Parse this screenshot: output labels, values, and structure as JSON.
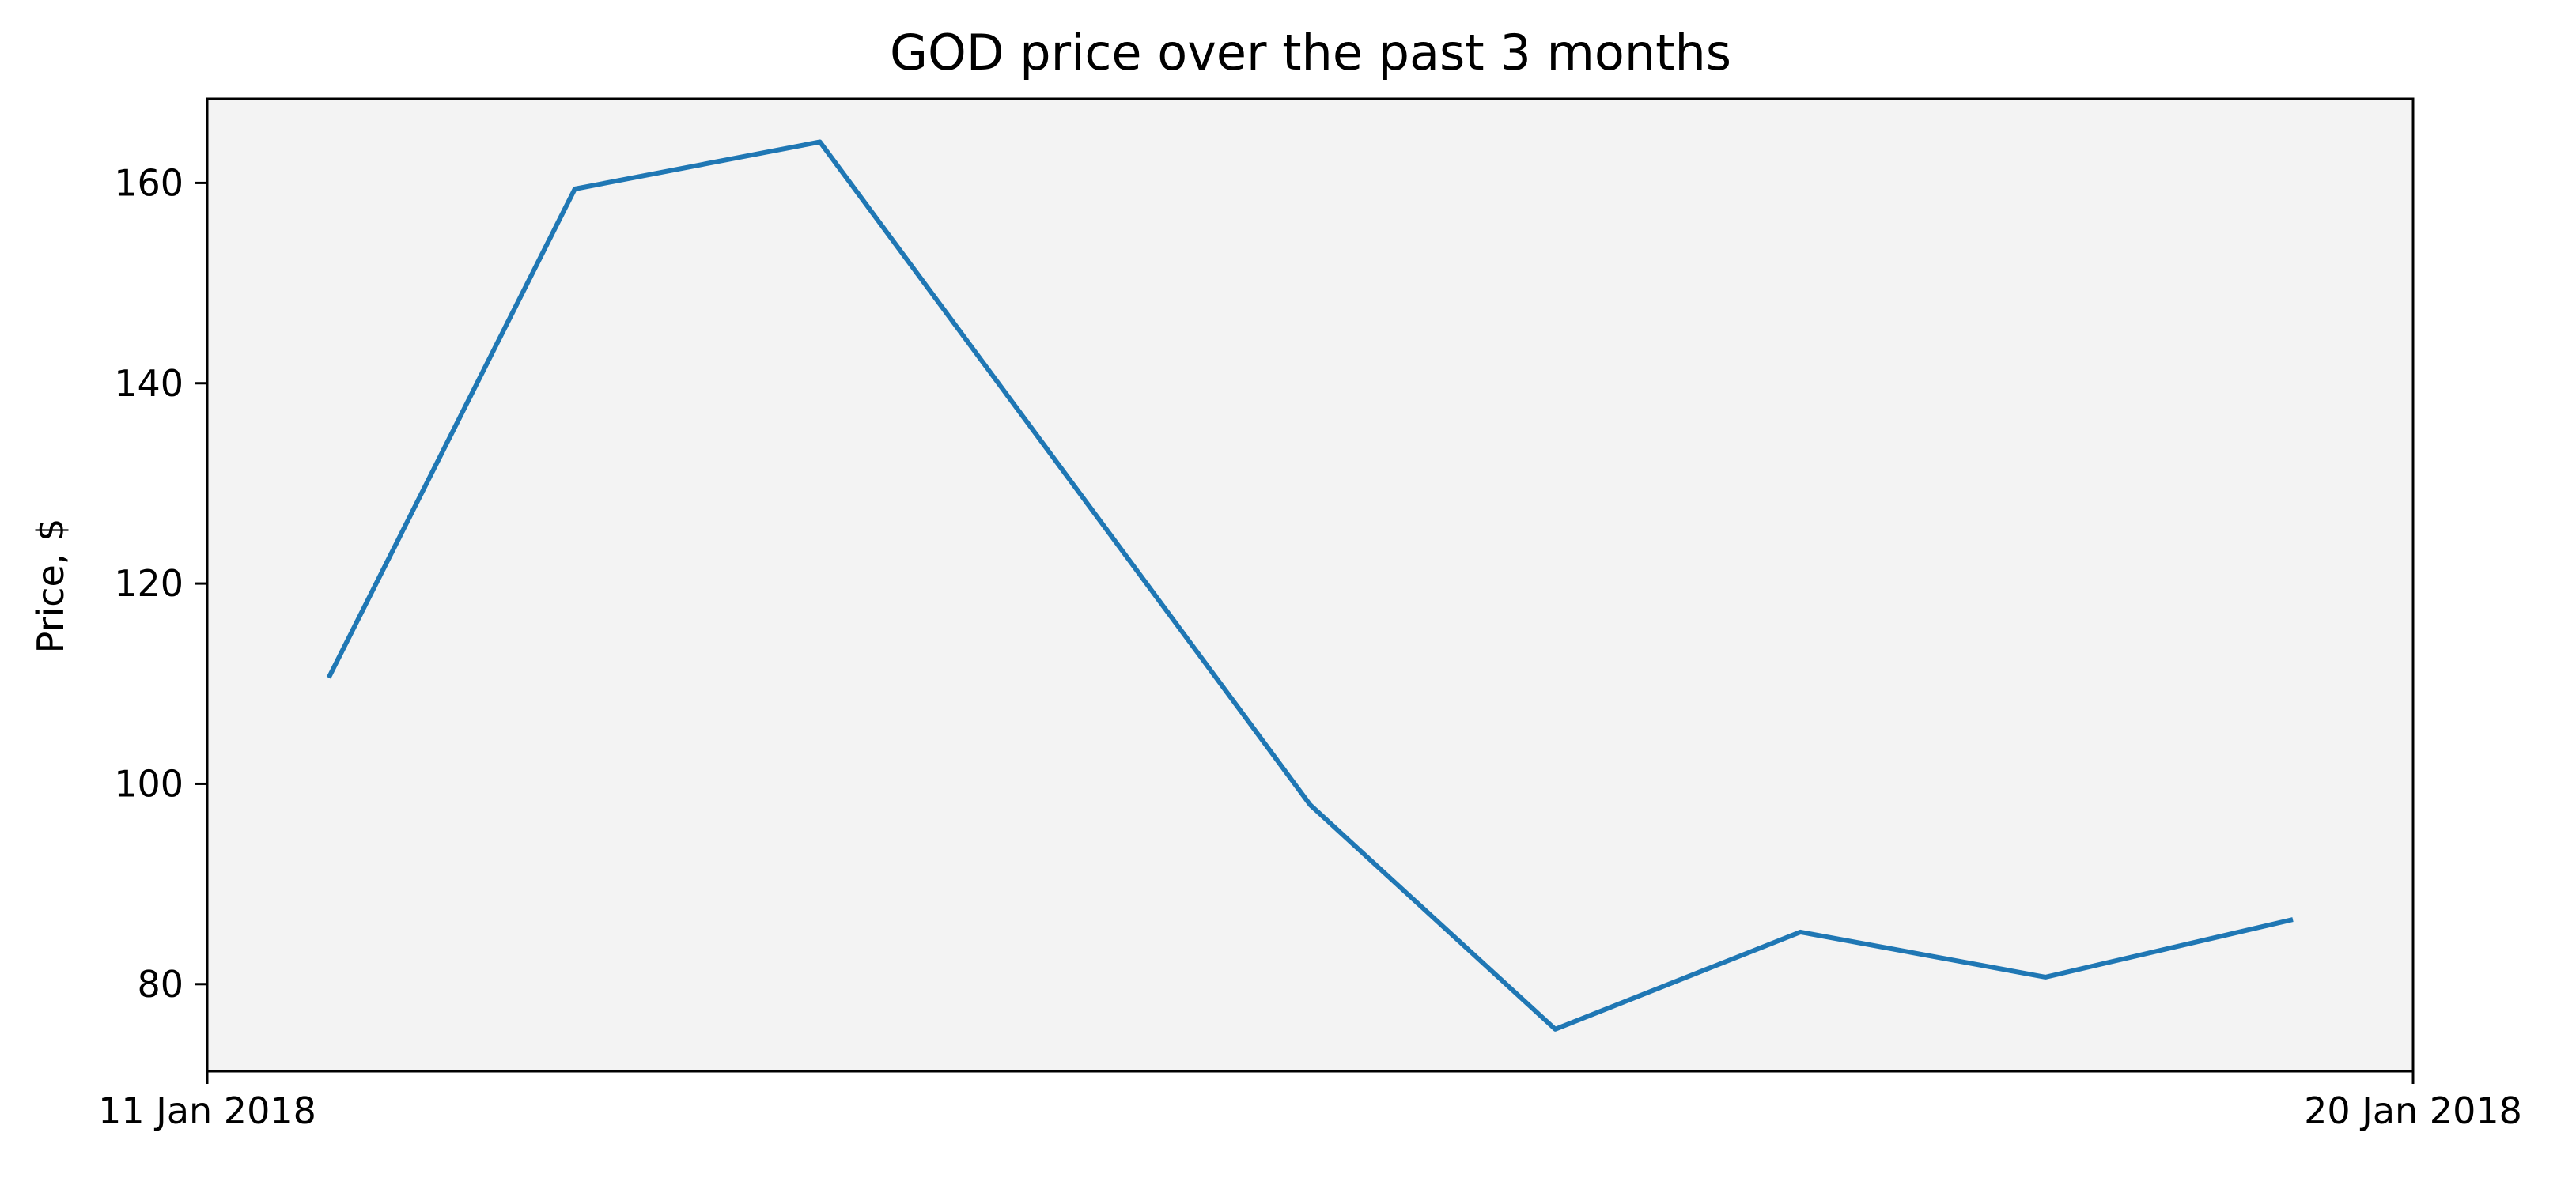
{
  "chart_data": {
    "type": "line",
    "title": "GOD price over the past 3 months",
    "xlabel": "",
    "ylabel": "Price, $",
    "x_tick_labels": [
      "11 Jan 2018",
      "20 Jan 2018"
    ],
    "x": [
      "2018-01-11 12:00",
      "2018-01-12 12:00",
      "2018-01-13 12:00",
      "2018-01-14 12:00",
      "2018-01-15 12:00",
      "2018-01-16 12:00",
      "2018-01-17 12:00",
      "2018-01-18 12:00",
      "2018-01-19 12:00"
    ],
    "xlim": [
      "2018-01-11",
      "2018-01-20"
    ],
    "y_ticks": [
      80,
      100,
      120,
      140,
      160
    ],
    "ylim": [
      71.3,
      168.4
    ],
    "grid": false,
    "plot_background": "#f3f3f3",
    "series": [
      {
        "color": "#1f77b4",
        "values": [
          110.8,
          159.4,
          164.1,
          131.0,
          97.9,
          75.5,
          85.2,
          80.7,
          86.4
        ]
      }
    ]
  }
}
